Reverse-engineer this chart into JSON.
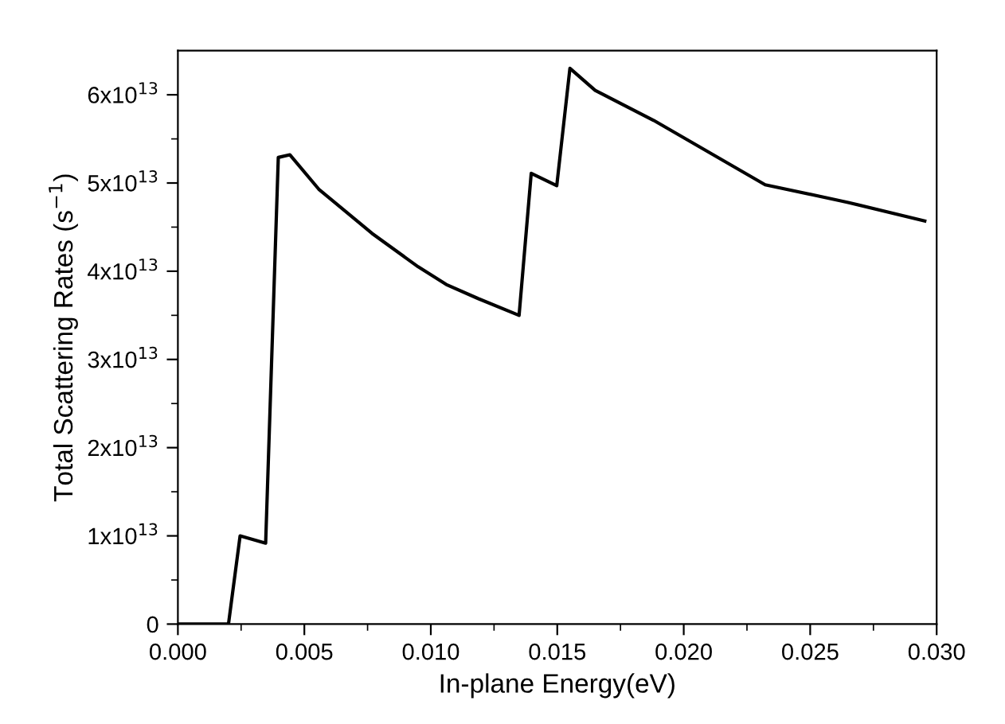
{
  "chart_data": {
    "type": "line",
    "xlabel": "In-plane Energy(eV)",
    "ylabel": "Total Scattering Rates (s$^{−1}$)",
    "x": [
      0,
      0.001,
      0.002,
      0.00246,
      0.00347,
      0.00397,
      0.00443,
      0.00557,
      0.00767,
      0.0095,
      0.01061,
      0.01187,
      0.01349,
      0.01397,
      0.01498,
      0.0155,
      0.0165,
      0.01881,
      0.02322,
      0.0265,
      0.02953
    ],
    "series": [
      {
        "color": "#000000",
        "values": [
          0,
          0,
          0,
          10000000000000.0,
          9170000000000.0,
          52900000000000.0,
          53200000000000.0,
          49300000000000.0,
          44300000000000.0,
          40500000000000.0,
          38500000000000.0,
          36900000000000.0,
          35000000000000.0,
          51100000000000.0,
          49700000000000.0,
          63000000000000.0,
          60500000000000.0,
          57100000000000.0,
          49800000000000.0,
          47800000000000.0,
          45700000000000.0
        ]
      }
    ],
    "xlim": [
      0,
      0.03
    ],
    "xticks": [
      {
        "value": 0,
        "label": "0.000"
      },
      {
        "value": 0.005,
        "label": "0.005"
      },
      {
        "value": 0.01,
        "label": "0.010"
      },
      {
        "value": 0.015,
        "label": "0.015"
      },
      {
        "value": 0.02,
        "label": "0.020"
      },
      {
        "value": 0.025,
        "label": "0.025"
      },
      {
        "value": 0.03,
        "label": "0.030"
      }
    ],
    "ylim": [
      0,
      65000000000000.0
    ],
    "yticks": [
      0,
      {
        "value": 10000000000000.0,
        "label": "1x10$^{13}$"
      },
      {
        "value": 20000000000000.0,
        "label": "2x10$^{13}$"
      },
      {
        "value": 30000000000000.0,
        "label": "3x10$^{13}$"
      },
      {
        "value": 40000000000000.0,
        "label": "4x10$^{13}$"
      },
      {
        "value": 50000000000000.0,
        "label": "5x10$^{13}$"
      },
      {
        "value": 60000000000000.0,
        "label": "6x10$^{13}$"
      }
    ],
    "grid": false,
    "legend": false,
    "marker": "none",
    "line_style": "solid"
  }
}
